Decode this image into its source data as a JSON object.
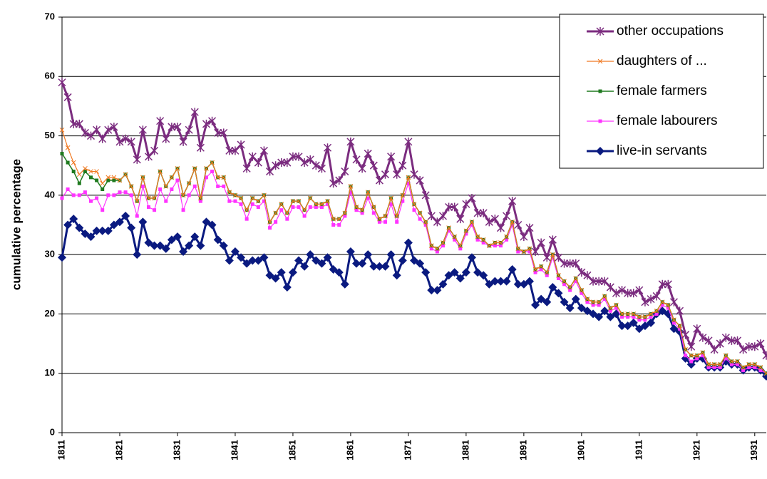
{
  "chart_data": {
    "type": "line",
    "ylabel": "cumulative percentage",
    "x": [
      1811,
      1812,
      1813,
      1814,
      1815,
      1816,
      1817,
      1818,
      1819,
      1820,
      1821,
      1822,
      1823,
      1824,
      1825,
      1826,
      1827,
      1828,
      1829,
      1830,
      1831,
      1832,
      1833,
      1834,
      1835,
      1836,
      1837,
      1838,
      1839,
      1840,
      1841,
      1842,
      1843,
      1844,
      1845,
      1846,
      1847,
      1848,
      1849,
      1850,
      1851,
      1852,
      1853,
      1854,
      1855,
      1856,
      1857,
      1858,
      1859,
      1860,
      1861,
      1862,
      1863,
      1864,
      1865,
      1866,
      1867,
      1868,
      1869,
      1870,
      1871,
      1872,
      1873,
      1874,
      1875,
      1876,
      1877,
      1878,
      1879,
      1880,
      1881,
      1882,
      1883,
      1884,
      1885,
      1886,
      1887,
      1888,
      1889,
      1890,
      1891,
      1892,
      1893,
      1894,
      1895,
      1896,
      1897,
      1898,
      1899,
      1900,
      1901,
      1902,
      1903,
      1904,
      1905,
      1906,
      1907,
      1908,
      1909,
      1910,
      1911,
      1912,
      1913,
      1914,
      1915,
      1916,
      1917,
      1918,
      1919,
      1920,
      1921,
      1922,
      1923,
      1924,
      1925,
      1926,
      1927,
      1928,
      1929,
      1930,
      1931,
      1932,
      1933
    ],
    "xlim": [
      1811,
      1933
    ],
    "xticks": [
      1811,
      1821,
      1831,
      1841,
      1851,
      1861,
      1871,
      1881,
      1891,
      1901,
      1911,
      1921,
      1931
    ],
    "ylim": [
      0,
      70
    ],
    "yticks": [
      0,
      10,
      20,
      30,
      40,
      50,
      60,
      70
    ],
    "grid": true,
    "legend": "upper right",
    "series": [
      {
        "name": "other occupations",
        "color": "#7b2c7f",
        "marker": "asterisk",
        "line_width": 3,
        "values": [
          59,
          56.5,
          52,
          52,
          50.5,
          50,
          51,
          49.5,
          51,
          51.5,
          49,
          49.5,
          49,
          46,
          51,
          46.5,
          47.5,
          52.5,
          49.5,
          51.5,
          51.5,
          49,
          51,
          54,
          48,
          52,
          52.5,
          50.5,
          50.5,
          47.5,
          47.5,
          48.5,
          44.5,
          46.5,
          45.5,
          47.5,
          44,
          45,
          45.5,
          45.5,
          46.5,
          46.5,
          45.5,
          46,
          45,
          44.5,
          48,
          42,
          42.5,
          44,
          49,
          46,
          44.5,
          47,
          45,
          42.5,
          43.5,
          46.5,
          43.5,
          45,
          49,
          43.5,
          42.5,
          40,
          36.5,
          35.5,
          36.5,
          38,
          38,
          36,
          38.5,
          39.5,
          37,
          37,
          35.5,
          36,
          34.5,
          36.5,
          39,
          35,
          33,
          34.5,
          30.5,
          32,
          29.5,
          32.5,
          29.5,
          28.5,
          28.5,
          28.5,
          27,
          26.5,
          25.5,
          25.5,
          25.5,
          24.5,
          23.5,
          24,
          23.5,
          23.5,
          24,
          22,
          22.5,
          23,
          25,
          25,
          22,
          20.5,
          16.5,
          14.5,
          17.5,
          16,
          15.5,
          14,
          15,
          16,
          15.5,
          15.5,
          14,
          14.5,
          14.5,
          15,
          13
        ]
      },
      {
        "name": "daughters of ...",
        "color": "#f07820",
        "marker": "x",
        "line_width": 1.2,
        "values": [
          51,
          48,
          45.5,
          43.5,
          44.5,
          44,
          44,
          42,
          43,
          43,
          42.5,
          43.5,
          41.5,
          39,
          43,
          39.5,
          39.5,
          44,
          41.5,
          43,
          44.5,
          40,
          42,
          44.5,
          39.5,
          44.5,
          45.5,
          43,
          43,
          40.5,
          40,
          39.5,
          37.5,
          39.5,
          39,
          40,
          35.5,
          37,
          38.5,
          37,
          39,
          39,
          37.5,
          39.5,
          38.5,
          38.5,
          39,
          36,
          36,
          37,
          41.5,
          38,
          37.5,
          40.5,
          38,
          36,
          36.5,
          39.5,
          36.5,
          40,
          43,
          38.5,
          37,
          35.5,
          31.5,
          31,
          32,
          34.5,
          33,
          31.5,
          34,
          35.5,
          33,
          32.5,
          31.5,
          32,
          32,
          33,
          35.5,
          31,
          30.5,
          31,
          27.5,
          28,
          27,
          30,
          26.5,
          25.5,
          24.5,
          26,
          24,
          22.5,
          22,
          22,
          23,
          21,
          21.5,
          20,
          20,
          20,
          19.5,
          19.5,
          20,
          20.5,
          22,
          21.5,
          19,
          18,
          14,
          13,
          13,
          13.5,
          11.5,
          11.5,
          11.5,
          13,
          12,
          12,
          11,
          11.5,
          11.5,
          11,
          10
        ]
      },
      {
        "name": "female farmers",
        "color": "#1f7a1f",
        "marker": "square",
        "line_width": 1.5,
        "values": [
          47,
          45.5,
          44,
          42,
          44,
          43,
          42.5,
          41,
          42.5,
          42.5,
          42.5,
          43.5,
          41.5,
          39,
          43,
          39.5,
          39.5,
          44,
          41.5,
          43,
          44.5,
          40,
          42,
          44.5,
          39.5,
          44.5,
          45.5,
          43,
          43,
          40.5,
          40,
          39.5,
          37.5,
          39.5,
          39,
          40,
          35.5,
          37,
          38.5,
          37,
          39,
          39,
          37.5,
          39.5,
          38.5,
          38.5,
          39,
          36,
          36,
          37,
          41.5,
          38,
          37.5,
          40.5,
          38,
          36,
          36.5,
          39.5,
          36.5,
          40,
          43,
          38.5,
          37,
          35.5,
          31.5,
          31,
          32,
          34.5,
          33,
          31.5,
          34,
          35.5,
          33,
          32.5,
          31.5,
          32,
          32,
          33,
          35.5,
          31,
          30.5,
          31,
          27.5,
          28,
          27,
          30,
          26.5,
          25.5,
          24.5,
          26,
          24,
          22.5,
          22,
          22,
          23,
          21,
          21.5,
          20,
          20,
          20,
          19.5,
          19.5,
          20,
          20.5,
          22,
          21.5,
          19,
          18,
          14,
          13,
          13,
          13.5,
          11.5,
          11.5,
          11.5,
          13,
          12,
          12,
          11,
          11.5,
          11.5,
          11,
          10
        ]
      },
      {
        "name": "female labourers",
        "color": "#ff33ff",
        "marker": "square",
        "line_width": 1.2,
        "values": [
          39.5,
          41,
          40,
          40,
          40.5,
          39,
          39.5,
          37.5,
          40,
          40,
          40.5,
          40.5,
          40,
          36.5,
          41.5,
          38,
          37.5,
          41,
          39,
          41,
          42.5,
          37.5,
          40,
          41.5,
          39,
          43,
          44,
          41.5,
          41.5,
          39,
          39,
          38.5,
          36,
          38.5,
          38,
          39,
          34.5,
          35.5,
          37.5,
          36,
          38,
          38,
          36.5,
          38,
          38,
          38,
          38.5,
          35,
          35,
          36.5,
          40.5,
          37.5,
          37,
          39.5,
          37,
          35.5,
          35.5,
          38.5,
          35.5,
          39,
          42,
          37.5,
          36,
          35,
          31,
          30.5,
          31.5,
          34,
          32.5,
          31,
          33.5,
          35,
          32.5,
          32,
          31.5,
          31.5,
          31.5,
          32.5,
          35,
          30.5,
          30.5,
          30.5,
          27,
          27.5,
          26.5,
          29.5,
          26,
          25,
          24,
          25.5,
          23.5,
          22,
          21.5,
          21.5,
          22.5,
          20.5,
          21,
          19.5,
          19.5,
          19.5,
          19,
          19,
          19.5,
          20,
          21.5,
          21,
          18.5,
          17.5,
          13,
          12,
          12.5,
          13,
          11,
          11,
          11,
          12.5,
          11.5,
          11.5,
          10.5,
          11,
          11,
          10.5,
          10
        ]
      },
      {
        "name": "live-in servants",
        "color": "#0a1a80",
        "marker": "diamond",
        "line_width": 3,
        "values": [
          29.5,
          35,
          36,
          34.5,
          33.5,
          33,
          34,
          34,
          34,
          35,
          35.5,
          36.5,
          34.5,
          30,
          35.5,
          32,
          31.5,
          31.5,
          31,
          32.5,
          33,
          30.5,
          31.5,
          33,
          31.5,
          35.5,
          35,
          32.5,
          31.5,
          29,
          30.5,
          29.5,
          28.5,
          29,
          29,
          29.5,
          26.5,
          26,
          27,
          24.5,
          27,
          29,
          28,
          30,
          29,
          28.5,
          29.5,
          27.5,
          27,
          25,
          30.5,
          28.5,
          28.5,
          30,
          28,
          28,
          28,
          30,
          26.5,
          29,
          32,
          29,
          28.5,
          27,
          24,
          24,
          25,
          26.5,
          27,
          26,
          27,
          29.5,
          27,
          26.5,
          25,
          25.5,
          25.5,
          25.5,
          27.5,
          25,
          25,
          25.5,
          21.5,
          22.5,
          22,
          24.5,
          23.5,
          22,
          21,
          22.5,
          21,
          20.5,
          20,
          19.5,
          20.5,
          19.5,
          20,
          18,
          18,
          18.5,
          17.5,
          18,
          18.5,
          20,
          20.5,
          20,
          17.5,
          17,
          12.5,
          11.5,
          12.5,
          12.5,
          11,
          11,
          11,
          12,
          11.5,
          11.5,
          10.5,
          11,
          11,
          10.5,
          9.5
        ]
      }
    ]
  }
}
